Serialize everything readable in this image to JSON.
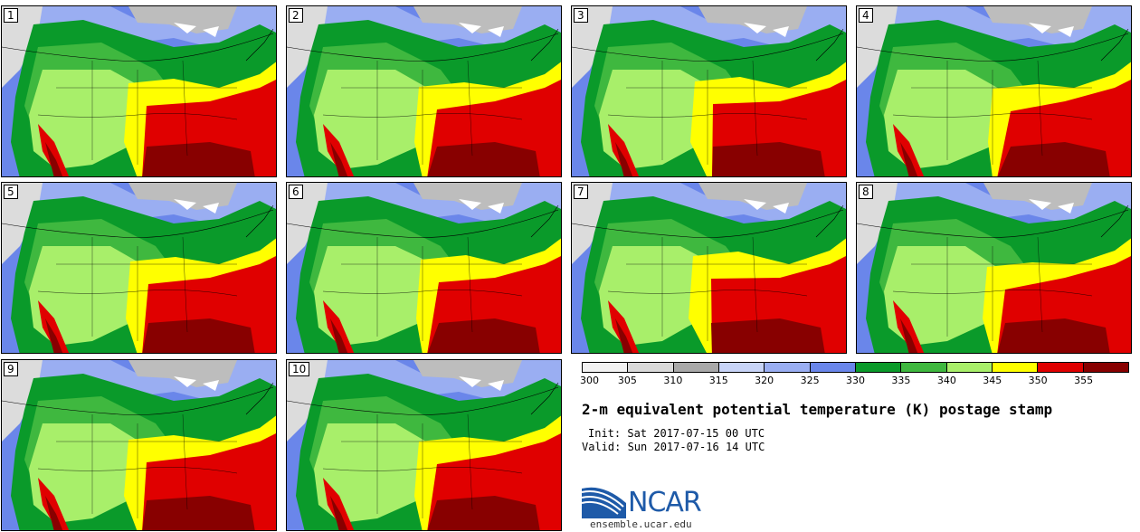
{
  "title": "2-m equivalent potential temperature (K) postage stamp",
  "init": "Init: Sat 2017-07-15 00 UTC",
  "valid": "Valid: Sun 2017-07-16 14 UTC",
  "site": "ensemble.ucar.edu",
  "logo_text": "NCAR",
  "panels": [
    "1",
    "2",
    "3",
    "4",
    "5",
    "6",
    "7",
    "8",
    "9",
    "10"
  ],
  "colorbar": {
    "ticks": [
      "300",
      "305",
      "310",
      "315",
      "320",
      "325",
      "330",
      "335",
      "340",
      "345",
      "350",
      "355"
    ],
    "colors": [
      "#f2f2f2",
      "#d9d9d9",
      "#a8a8a8",
      "#c8d4f7",
      "#9aaef2",
      "#6a86ea",
      "#0a9a2a",
      "#3fb83f",
      "#a8ef6a",
      "#ffff00",
      "#e00000",
      "#880000"
    ]
  },
  "palette": {
    "ocean": "#6a86ea",
    "ocean_light": "#9aaef2",
    "greatlakes": "#ffffff",
    "north_gray": "#bdbdbd",
    "green_dark": "#0a9a2a",
    "green_mid": "#3fb83f",
    "green_light": "#a8ef6a",
    "yellow": "#ffff00",
    "red": "#e00000",
    "dark_red": "#880000"
  }
}
